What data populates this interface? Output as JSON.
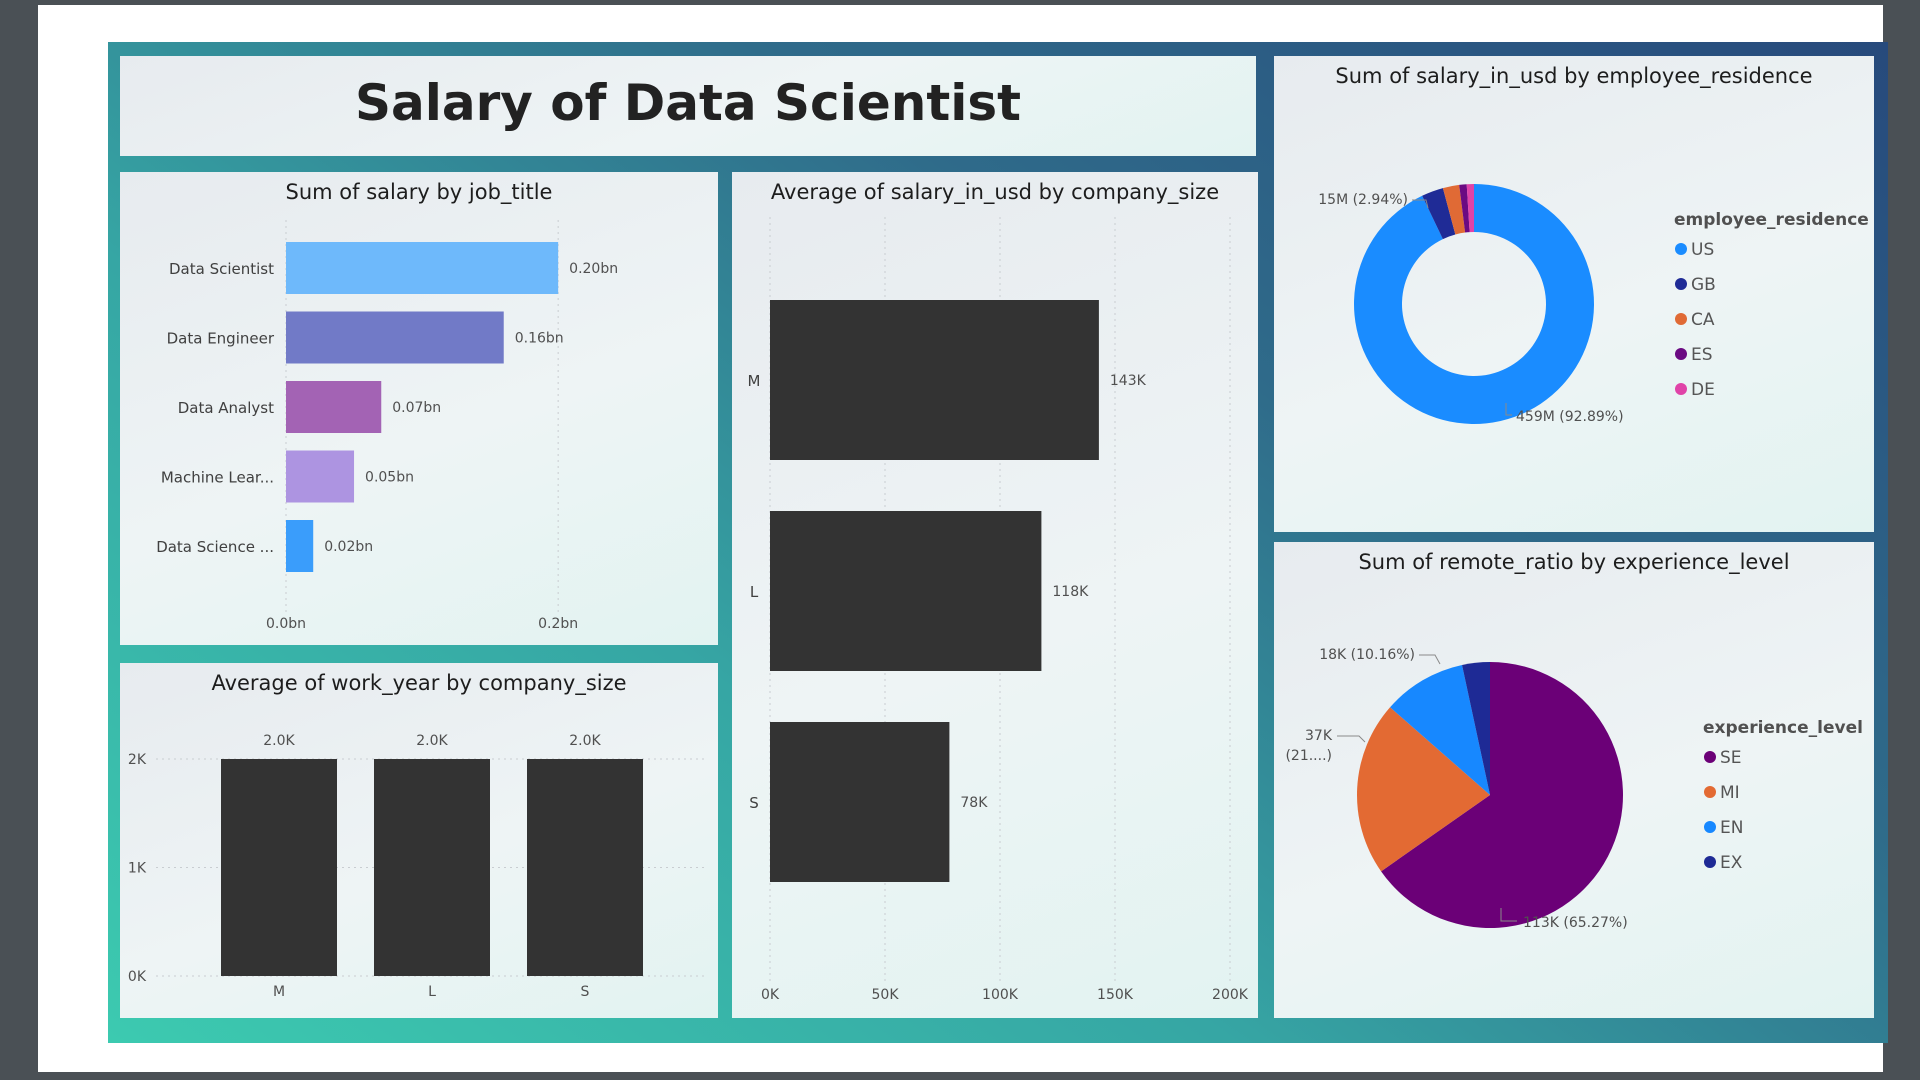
{
  "dashboard": {
    "title": "Salary of Data Scientist"
  },
  "chart_data": [
    {
      "id": "job",
      "type": "bar",
      "orientation": "horizontal",
      "title": "Sum of salary by job_title",
      "categories": [
        "Data Scientist",
        "Data Engineer",
        "Data Analyst",
        "Machine Lear...",
        "Data Science ..."
      ],
      "values": [
        0.2,
        0.16,
        0.07,
        0.05,
        0.02
      ],
      "value_labels": [
        "0.20bn",
        "0.16bn",
        "0.07bn",
        "0.05bn",
        "0.02bn"
      ],
      "colors": [
        "#6eb9fb",
        "#717ac7",
        "#a363b4",
        "#ad94e1",
        "#3a9dfb"
      ],
      "xlim": [
        0,
        0.25
      ],
      "xticks": [
        0,
        0.2
      ],
      "xtick_labels": [
        "0.0bn",
        "0.2bn"
      ],
      "grid": true
    },
    {
      "id": "work",
      "type": "bar",
      "orientation": "vertical",
      "title": "Average of work_year by company_size",
      "categories": [
        "M",
        "L",
        "S"
      ],
      "values": [
        2.0,
        2.0,
        2.0
      ],
      "value_labels": [
        "2.0K",
        "2.0K",
        "2.0K"
      ],
      "color": "#333333",
      "ylim": [
        0,
        2.2
      ],
      "yticks": [
        0,
        1,
        2
      ],
      "ytick_labels": [
        "0K",
        "1K",
        "2K"
      ],
      "grid": true
    },
    {
      "id": "avg",
      "type": "bar",
      "orientation": "horizontal",
      "title": "Average of salary_in_usd by company_size",
      "categories": [
        "M",
        "L",
        "S"
      ],
      "values": [
        143,
        118,
        78
      ],
      "value_labels": [
        "143K",
        "118K",
        "78K"
      ],
      "color": "#333333",
      "xlim": [
        0,
        200
      ],
      "xticks": [
        0,
        50,
        100,
        150,
        200
      ],
      "xtick_labels": [
        "0K",
        "50K",
        "100K",
        "150K",
        "200K"
      ],
      "grid": true
    },
    {
      "id": "residence",
      "type": "pie",
      "donut": true,
      "title": "Sum of salary_in_usd by employee_residence",
      "legend_title": "employee_residence",
      "legend_position": "right",
      "slices": [
        {
          "name": "US",
          "percent": 92.89,
          "color": "#1a8cff"
        },
        {
          "name": "GB",
          "percent": 2.94,
          "color": "#1f2b96"
        },
        {
          "name": "CA",
          "percent": 2.2,
          "color": "#e06a35"
        },
        {
          "name": "ES",
          "percent": 1.0,
          "color": "#6b0a82"
        },
        {
          "name": "DE",
          "percent": 0.97,
          "color": "#e043a8"
        }
      ],
      "data_labels": [
        {
          "slice": "US",
          "text": "459M (92.89%)"
        },
        {
          "slice": "GB",
          "text": "15M (2.94%)"
        }
      ]
    },
    {
      "id": "remote",
      "type": "pie",
      "donut": false,
      "title": "Sum of remote_ratio by experience_level",
      "legend_title": "experience_level",
      "legend_position": "right",
      "slices": [
        {
          "name": "SE",
          "percent": 65.27,
          "color": "#6b0077"
        },
        {
          "name": "MI",
          "percent": 21.2,
          "color": "#e36a33"
        },
        {
          "name": "EN",
          "percent": 10.16,
          "color": "#1788ff"
        },
        {
          "name": "EX",
          "percent": 3.37,
          "color": "#1e2a95"
        }
      ],
      "data_labels": [
        {
          "slice": "SE",
          "text": "113K (65.27%)"
        },
        {
          "slice": "MI",
          "text": "37K\n(21....)"
        },
        {
          "slice": "EN",
          "text": "18K (10.16%)"
        }
      ]
    }
  ]
}
